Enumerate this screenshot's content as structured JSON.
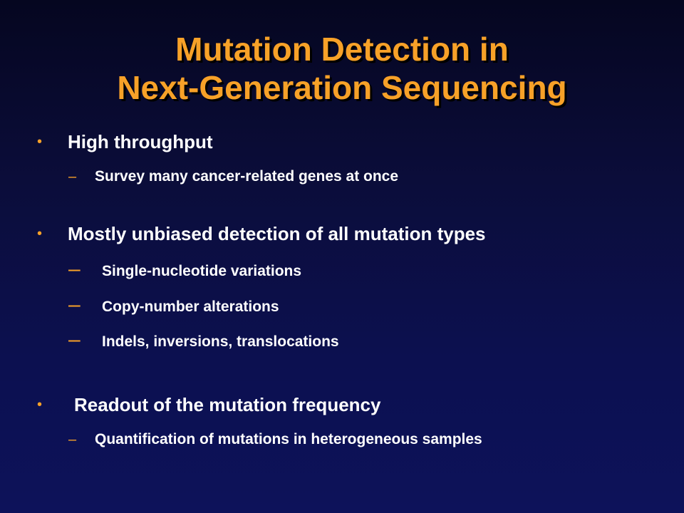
{
  "slide": {
    "title_line1": "Mutation Detection in",
    "title_line2": "Next-Generation Sequencing",
    "bullet_marker": "•",
    "dash_marker": "–",
    "accent_color": "#f7a128",
    "background_color": "#0b0d3a",
    "bullets": [
      {
        "text": "High throughput",
        "subs": [
          "Survey many cancer-related genes at once"
        ]
      },
      {
        "text": "Mostly unbiased detection of all mutation types",
        "subs": [
          "Single-nucleotide variations",
          "Copy-number alterations",
          "Indels, inversions, translocations"
        ]
      },
      {
        "text": "Readout of the mutation frequency",
        "subs": [
          "Quantification of mutations in heterogeneous samples"
        ]
      }
    ]
  }
}
